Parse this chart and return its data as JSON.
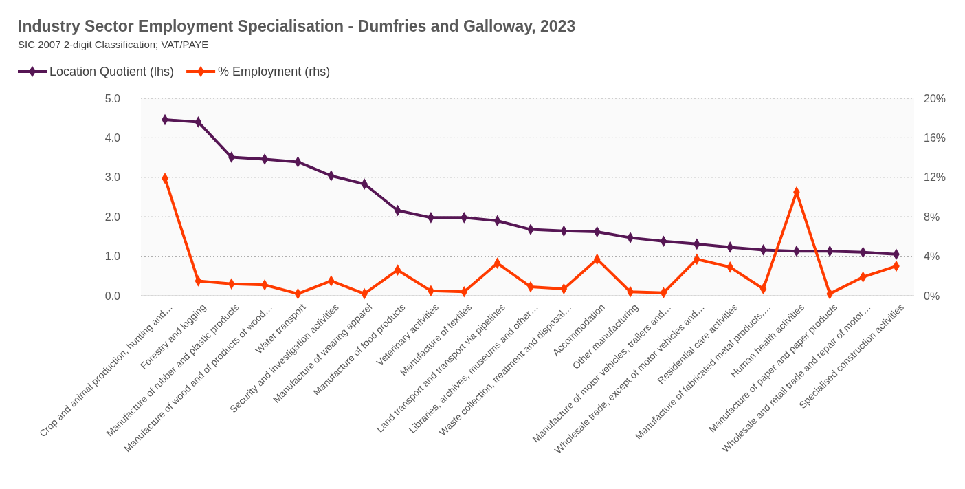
{
  "chart_data": {
    "type": "line",
    "title": "Industry Sector Employment Specialisation - Dumfries and Galloway, 2023",
    "subtitle": "SIC 2007 2-digit Classification; VAT/PAYE",
    "categories": [
      "Crop and animal production, hunting and…",
      "Forestry and logging",
      "Manufacture of rubber and plastic products",
      "Manufacture of wood and of products of wood…",
      "Water transport",
      "Security and investigation activities",
      "Manufacture of wearing apparel",
      "Manufacture of food products",
      "Veterinary activities",
      "Manufacture of textiles",
      "Land transport and transport via pipelines",
      "Libraries, archives, museums and other…",
      "Waste collection, treatment and disposal…",
      "Accommodation",
      "Other manufacturing",
      "Manufacture of motor vehicles, trailers and…",
      "Wholesale trade, except of motor vehicles and…",
      "Residential care activities",
      "Manufacture of fabricated metal products,…",
      "Human health activities",
      "Manufacture of paper and paper products",
      "Wholesale and retail trade and repair of motor…",
      "Specialised construction activities"
    ],
    "series": [
      {
        "name": "Location Quotient (lhs)",
        "color": "#561654",
        "values": [
          4.46,
          4.4,
          3.51,
          3.46,
          3.39,
          3.04,
          2.83,
          2.16,
          1.98,
          1.98,
          1.9,
          1.68,
          1.64,
          1.62,
          1.47,
          1.38,
          1.31,
          1.23,
          1.16,
          1.13,
          1.13,
          1.1,
          1.05
        ]
      },
      {
        "name": "% Employment (rhs)",
        "color": "#ff3b00",
        "axis": "y2",
        "values": [
          11.9,
          1.5,
          1.2,
          1.1,
          0.2,
          1.5,
          0.2,
          2.6,
          0.5,
          0.4,
          3.3,
          0.9,
          0.7,
          3.7,
          0.4,
          0.3,
          3.7,
          2.9,
          0.7,
          10.5,
          0.2,
          1.9,
          3.0
        ]
      }
    ],
    "ylim": [
      0,
      5
    ],
    "yticks": [
      {
        "value": 0,
        "label": "0.0"
      },
      {
        "value": 1,
        "label": "1.0"
      },
      {
        "value": 2,
        "label": "2.0"
      },
      {
        "value": 3,
        "label": "3.0"
      },
      {
        "value": 4,
        "label": "4.0"
      },
      {
        "value": 5,
        "label": "5.0"
      }
    ],
    "y2lim": [
      0,
      20
    ],
    "y2ticks": [
      {
        "value": 0,
        "label": "0%"
      },
      {
        "value": 4,
        "label": "4%"
      },
      {
        "value": 8,
        "label": "8%"
      },
      {
        "value": 12,
        "label": "12%"
      },
      {
        "value": 16,
        "label": "16%"
      },
      {
        "value": 20,
        "label": "20%"
      }
    ],
    "grid": "y",
    "legend": "top left",
    "marker": "diamond",
    "line_style": "solid"
  }
}
